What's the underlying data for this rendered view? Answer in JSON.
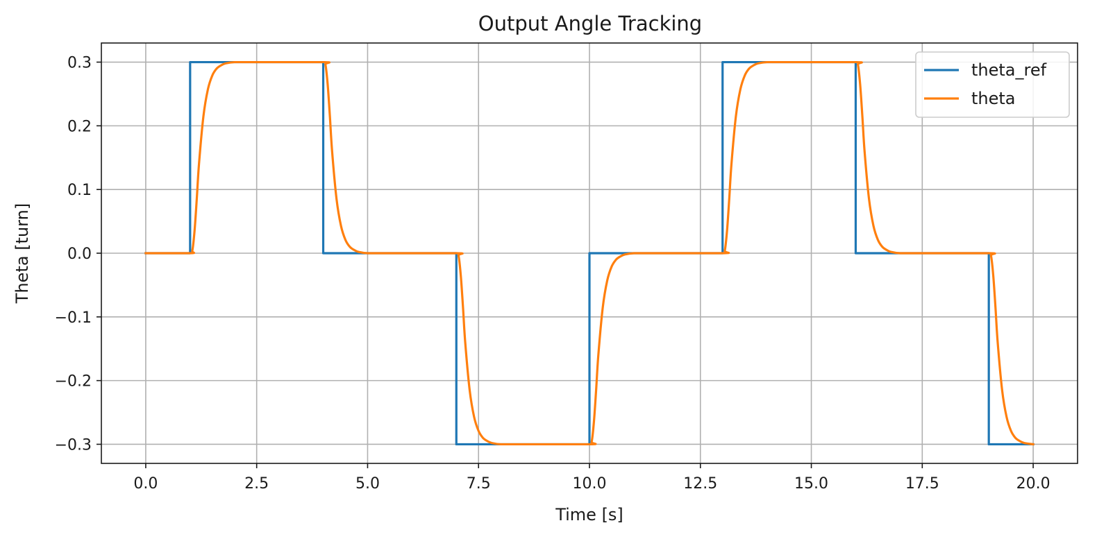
{
  "chart_data": {
    "type": "line",
    "title": "Output Angle Tracking",
    "xlabel": "Time [s]",
    "ylabel": "Theta [turn]",
    "xlim": [
      -1.0,
      21.0
    ],
    "ylim": [
      -0.33,
      0.33
    ],
    "x_ticks": [
      0.0,
      2.5,
      5.0,
      7.5,
      10.0,
      12.5,
      15.0,
      17.5,
      20.0
    ],
    "x_tick_labels": [
      "0.0",
      "2.5",
      "5.0",
      "7.5",
      "10.0",
      "12.5",
      "15.0",
      "17.5",
      "20.0"
    ],
    "y_ticks": [
      -0.3,
      -0.2,
      -0.1,
      0.0,
      0.1,
      0.2,
      0.3
    ],
    "y_tick_labels": [
      "−0.3",
      "−0.2",
      "−0.1",
      "0.0",
      "0.1",
      "0.2",
      "0.3"
    ],
    "grid": true,
    "legend_position": "top-right",
    "series": [
      {
        "name": "theta_ref",
        "color": "#1f77b4",
        "shape": "step",
        "x": [
          0,
          1,
          1,
          4,
          4,
          7,
          7,
          10,
          10,
          13,
          13,
          16,
          16,
          19,
          19,
          20
        ],
        "y": [
          0,
          0,
          0.3,
          0.3,
          0,
          0,
          -0.3,
          -0.3,
          0,
          0,
          0.3,
          0.3,
          0,
          0,
          -0.3,
          -0.3
        ]
      },
      {
        "name": "theta",
        "color": "#ff7f0e",
        "shape": "smooth",
        "x": [
          0,
          1.0,
          1.05,
          1.1,
          1.15,
          1.2,
          1.3,
          1.4,
          1.5,
          1.6,
          1.7,
          1.8,
          2.0,
          2.3,
          4.0,
          4.05,
          4.1,
          4.15,
          4.2,
          4.3,
          4.4,
          4.5,
          4.6,
          4.7,
          4.8,
          5.0,
          5.3,
          7.0,
          7.05,
          7.1,
          7.15,
          7.2,
          7.3,
          7.4,
          7.5,
          7.6,
          7.7,
          7.8,
          8.0,
          8.3,
          10.0,
          10.05,
          10.1,
          10.15,
          10.2,
          10.3,
          10.4,
          10.5,
          10.6,
          10.7,
          10.8,
          11.0,
          11.3,
          13.0,
          13.05,
          13.1,
          13.15,
          13.2,
          13.3,
          13.4,
          13.5,
          13.6,
          13.7,
          13.8,
          14.0,
          14.3,
          16.0,
          16.05,
          16.1,
          16.15,
          16.2,
          16.3,
          16.4,
          16.5,
          16.6,
          16.7,
          16.8,
          17.0,
          17.3,
          19.0,
          19.05,
          19.1,
          19.15,
          19.2,
          19.3,
          19.4,
          19.5,
          19.6,
          19.7,
          19.8,
          20.0
        ],
        "y": [
          0,
          0,
          0.004,
          0.035,
          0.085,
          0.14,
          0.215,
          0.257,
          0.279,
          0.29,
          0.295,
          0.298,
          0.3,
          0.3,
          0.3,
          0.296,
          0.265,
          0.215,
          0.16,
          0.085,
          0.043,
          0.021,
          0.01,
          0.005,
          0.002,
          0.0,
          0.0,
          0.0,
          -0.004,
          -0.035,
          -0.085,
          -0.14,
          -0.215,
          -0.257,
          -0.279,
          -0.29,
          -0.295,
          -0.298,
          -0.3,
          -0.3,
          -0.3,
          -0.296,
          -0.265,
          -0.215,
          -0.16,
          -0.085,
          -0.043,
          -0.021,
          -0.01,
          -0.005,
          -0.002,
          0.0,
          0.0,
          0.0,
          0.004,
          0.035,
          0.085,
          0.14,
          0.215,
          0.257,
          0.279,
          0.29,
          0.295,
          0.298,
          0.3,
          0.3,
          0.3,
          0.296,
          0.265,
          0.215,
          0.16,
          0.085,
          0.043,
          0.021,
          0.01,
          0.005,
          0.002,
          0.0,
          0.0,
          0.0,
          -0.004,
          -0.035,
          -0.085,
          -0.14,
          -0.215,
          -0.257,
          -0.279,
          -0.29,
          -0.295,
          -0.298,
          -0.3
        ]
      }
    ]
  }
}
